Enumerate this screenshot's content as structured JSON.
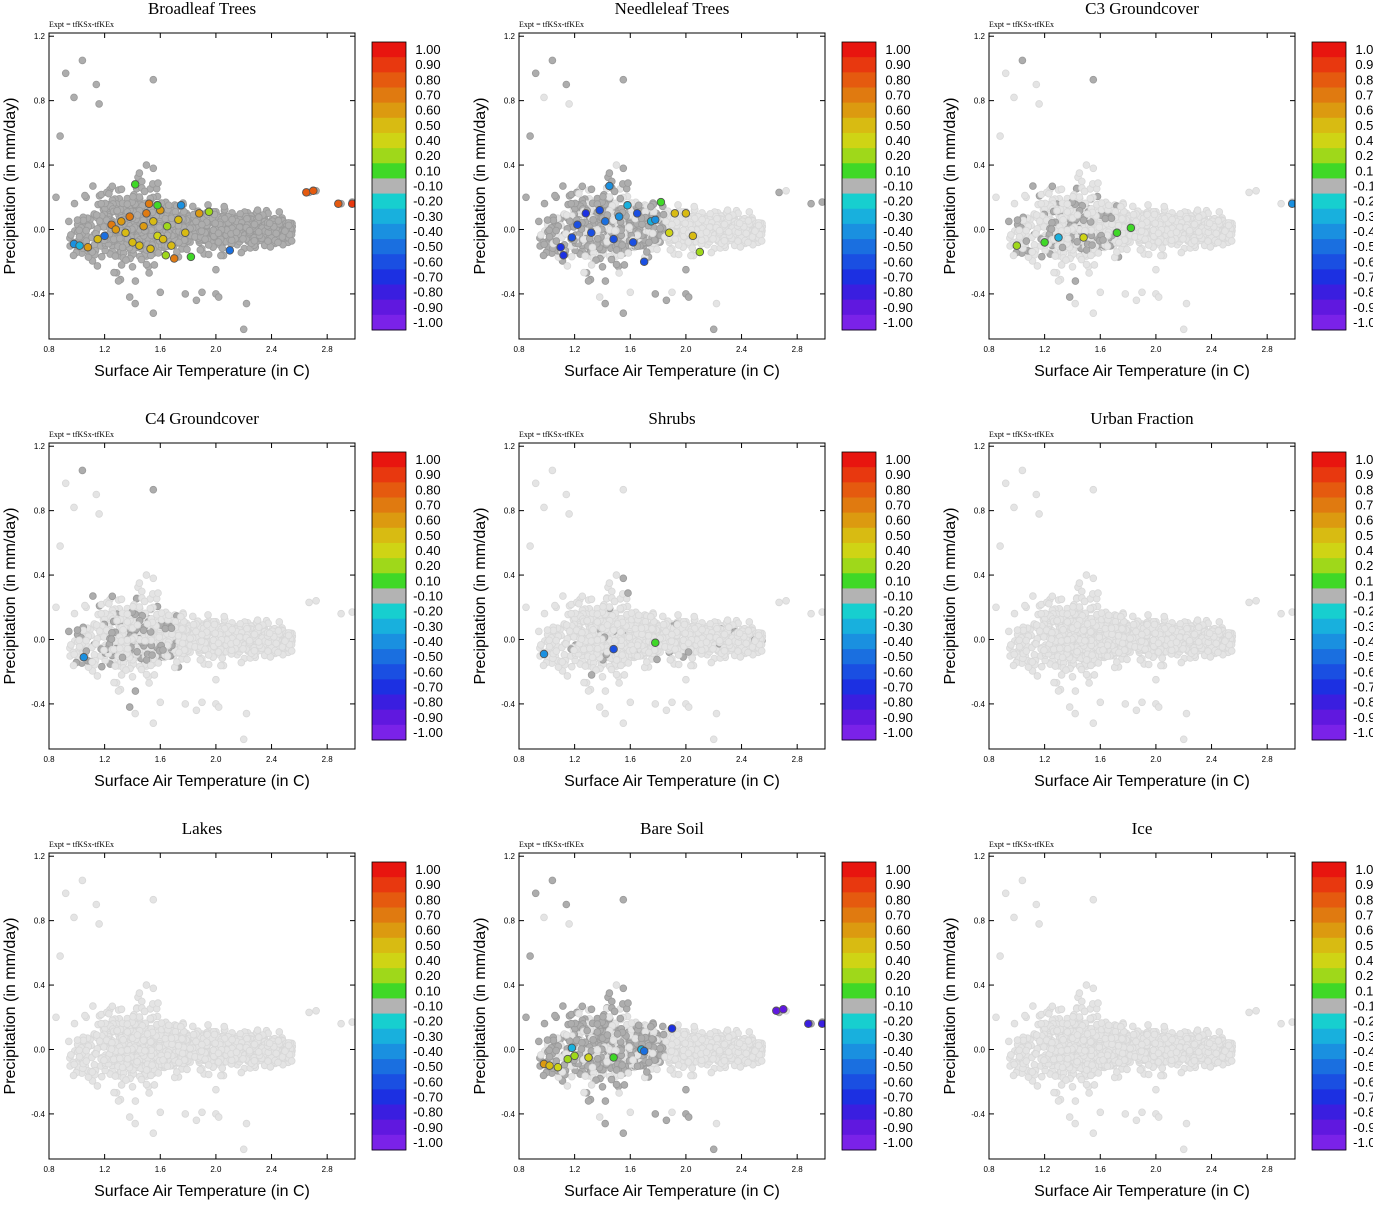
{
  "figure": {
    "experiment_label": "Expt = tfKSx-tfKEx"
  },
  "colorbar": {
    "labels": [
      "1.00",
      "0.90",
      "0.80",
      "0.70",
      "0.60",
      "0.50",
      "0.40",
      "0.20",
      "0.10",
      "-0.10",
      "-0.20",
      "-0.30",
      "-0.40",
      "-0.50",
      "-0.60",
      "-0.70",
      "-0.80",
      "-0.90",
      "-1.00"
    ],
    "colors": [
      "#e8150f",
      "#e8380f",
      "#e55a0f",
      "#e07a10",
      "#dc9a10",
      "#d8bb12",
      "#cfd415",
      "#9fd81a",
      "#3fd827",
      "#b3b3b3",
      "#17cfcf",
      "#18b0dd",
      "#1a90e0",
      "#1a6fe0",
      "#1a4fe2",
      "#1c30e2",
      "#3a1ee0",
      "#6018df",
      "#7a22e8"
    ]
  },
  "chart_data": [
    {
      "type": "scatter",
      "title": "Broadleaf Trees",
      "xlabel": "Surface Air Temperature (in C)",
      "ylabel": "Precipitation (in mm/day)",
      "xlim": [
        0.8,
        3.0
      ],
      "ylim": [
        -0.68,
        1.22
      ],
      "xticks": [
        "0.8",
        "1.2",
        "1.6",
        "2.0",
        "2.4",
        "2.8"
      ],
      "yticks": [
        "-0.4",
        "0.0",
        "0.4",
        "0.8",
        "1.2"
      ],
      "base_cloud": "dark-gray",
      "highlights": [
        {
          "x": 0.98,
          "y": -0.09,
          "value": -0.3
        },
        {
          "x": 1.02,
          "y": -0.1,
          "value": -0.2
        },
        {
          "x": 1.08,
          "y": -0.11,
          "value": 0.6
        },
        {
          "x": 1.15,
          "y": -0.06,
          "value": 0.5
        },
        {
          "x": 1.2,
          "y": -0.04,
          "value": -0.4
        },
        {
          "x": 1.25,
          "y": 0.03,
          "value": 0.7
        },
        {
          "x": 1.28,
          "y": 0.0,
          "value": 0.6
        },
        {
          "x": 1.32,
          "y": 0.05,
          "value": 0.6
        },
        {
          "x": 1.35,
          "y": -0.02,
          "value": 0.4
        },
        {
          "x": 1.38,
          "y": 0.08,
          "value": 0.7
        },
        {
          "x": 1.4,
          "y": -0.08,
          "value": 0.5
        },
        {
          "x": 1.45,
          "y": -0.1,
          "value": 0.4
        },
        {
          "x": 1.48,
          "y": 0.02,
          "value": 0.6
        },
        {
          "x": 1.5,
          "y": 0.1,
          "value": 0.7
        },
        {
          "x": 1.53,
          "y": -0.12,
          "value": 0.4
        },
        {
          "x": 1.55,
          "y": 0.05,
          "value": 0.5
        },
        {
          "x": 1.58,
          "y": -0.04,
          "value": 0.3
        },
        {
          "x": 1.6,
          "y": 0.12,
          "value": 0.6
        },
        {
          "x": 1.62,
          "y": -0.06,
          "value": 0.4
        },
        {
          "x": 1.65,
          "y": 0.02,
          "value": 0.2
        },
        {
          "x": 1.68,
          "y": -0.1,
          "value": 0.5
        },
        {
          "x": 1.7,
          "y": -0.18,
          "value": 0.7
        },
        {
          "x": 1.73,
          "y": 0.06,
          "value": 0.5
        },
        {
          "x": 1.75,
          "y": 0.15,
          "value": -0.3
        },
        {
          "x": 1.78,
          "y": -0.02,
          "value": 0.4
        },
        {
          "x": 1.82,
          "y": -0.17,
          "value": 0.1
        },
        {
          "x": 1.88,
          "y": 0.1,
          "value": 0.6
        },
        {
          "x": 1.95,
          "y": 0.11,
          "value": 0.2
        },
        {
          "x": 1.42,
          "y": 0.28,
          "value": 0.1
        },
        {
          "x": 1.52,
          "y": 0.16,
          "value": 0.7
        },
        {
          "x": 1.58,
          "y": 0.15,
          "value": 0.1
        },
        {
          "x": 1.64,
          "y": -0.16,
          "value": 0.2
        },
        {
          "x": 2.1,
          "y": -0.13,
          "value": -0.4
        },
        {
          "x": 2.65,
          "y": 0.23,
          "value": 0.8
        },
        {
          "x": 2.7,
          "y": 0.24,
          "value": 0.8
        },
        {
          "x": 2.88,
          "y": 0.16,
          "value": 0.8
        },
        {
          "x": 2.98,
          "y": 0.16,
          "value": 0.9
        }
      ]
    },
    {
      "type": "scatter",
      "title": "Needleleaf Trees",
      "xlabel": "Surface Air Temperature (in C)",
      "ylabel": "Precipitation (in mm/day)",
      "xlim": [
        0.8,
        3.0
      ],
      "ylim": [
        -0.68,
        1.22
      ],
      "xticks": [
        "0.8",
        "1.2",
        "1.6",
        "2.0",
        "2.4",
        "2.8"
      ],
      "yticks": [
        "-0.4",
        "0.0",
        "0.4",
        "0.8",
        "1.2"
      ],
      "base_cloud": "mixed",
      "highlights": [
        {
          "x": 1.1,
          "y": -0.11,
          "value": -0.7
        },
        {
          "x": 1.18,
          "y": -0.05,
          "value": -0.5
        },
        {
          "x": 1.22,
          "y": 0.03,
          "value": -0.6
        },
        {
          "x": 1.28,
          "y": 0.1,
          "value": -0.7
        },
        {
          "x": 1.32,
          "y": -0.02,
          "value": -0.6
        },
        {
          "x": 1.38,
          "y": 0.12,
          "value": -0.5
        },
        {
          "x": 1.42,
          "y": 0.05,
          "value": -0.4
        },
        {
          "x": 1.48,
          "y": -0.06,
          "value": -0.6
        },
        {
          "x": 1.52,
          "y": 0.08,
          "value": -0.3
        },
        {
          "x": 1.58,
          "y": 0.15,
          "value": -0.2
        },
        {
          "x": 1.62,
          "y": -0.08,
          "value": -0.5
        },
        {
          "x": 1.65,
          "y": 0.1,
          "value": -0.6
        },
        {
          "x": 1.7,
          "y": -0.2,
          "value": -0.6
        },
        {
          "x": 1.75,
          "y": 0.05,
          "value": -0.2
        },
        {
          "x": 1.78,
          "y": 0.06,
          "value": -0.3
        },
        {
          "x": 1.82,
          "y": 0.17,
          "value": 0.1
        },
        {
          "x": 1.88,
          "y": -0.02,
          "value": 0.3
        },
        {
          "x": 1.92,
          "y": 0.1,
          "value": 0.4
        },
        {
          "x": 2.0,
          "y": 0.1,
          "value": 0.5
        },
        {
          "x": 2.05,
          "y": -0.04,
          "value": 0.4
        },
        {
          "x": 2.1,
          "y": -0.14,
          "value": 0.2
        },
        {
          "x": 1.12,
          "y": -0.16,
          "value": -0.7
        },
        {
          "x": 1.45,
          "y": 0.27,
          "value": -0.3
        }
      ]
    },
    {
      "type": "scatter",
      "title": "C3 Groundcover",
      "xlabel": "Surface Air Temperature (in C)",
      "ylabel": "Precipitation (in mm/day)",
      "xlim": [
        0.8,
        3.0
      ],
      "ylim": [
        -0.68,
        1.22
      ],
      "xticks": [
        "0.8",
        "1.2",
        "1.6",
        "2.0",
        "2.4",
        "2.8"
      ],
      "yticks": [
        "-0.4",
        "0.0",
        "0.4",
        "0.8",
        "1.2"
      ],
      "base_cloud": "mixed-light",
      "highlights": [
        {
          "x": 1.0,
          "y": -0.1,
          "value": 0.2
        },
        {
          "x": 1.2,
          "y": -0.08,
          "value": 0.1
        },
        {
          "x": 1.3,
          "y": -0.05,
          "value": -0.2
        },
        {
          "x": 1.48,
          "y": -0.05,
          "value": 0.3
        },
        {
          "x": 1.72,
          "y": -0.02,
          "value": 0.1
        },
        {
          "x": 1.82,
          "y": 0.01,
          "value": 0.1
        },
        {
          "x": 2.98,
          "y": 0.16,
          "value": -0.3
        }
      ]
    },
    {
      "type": "scatter",
      "title": "C4 Groundcover",
      "xlabel": "Surface Air Temperature (in C)",
      "ylabel": "Precipitation (in mm/day)",
      "xlim": [
        0.8,
        3.0
      ],
      "ylim": [
        -0.68,
        1.22
      ],
      "xticks": [
        "0.8",
        "1.2",
        "1.6",
        "2.0",
        "2.4",
        "2.8"
      ],
      "yticks": [
        "-0.4",
        "0.0",
        "0.4",
        "0.8",
        "1.2"
      ],
      "base_cloud": "mixed-light",
      "highlights": [
        {
          "x": 1.05,
          "y": -0.11,
          "value": -0.3
        }
      ]
    },
    {
      "type": "scatter",
      "title": "Shrubs",
      "xlabel": "Surface Air Temperature (in C)",
      "ylabel": "Precipitation (in mm/day)",
      "xlim": [
        0.8,
        3.0
      ],
      "ylim": [
        -0.68,
        1.22
      ],
      "xticks": [
        "0.8",
        "1.2",
        "1.6",
        "2.0",
        "2.4",
        "2.8"
      ],
      "yticks": [
        "-0.4",
        "0.0",
        "0.4",
        "0.8",
        "1.2"
      ],
      "base_cloud": "light-sparse",
      "highlights": [
        {
          "x": 0.98,
          "y": -0.09,
          "value": -0.3
        },
        {
          "x": 1.48,
          "y": -0.06,
          "value": -0.5
        },
        {
          "x": 1.78,
          "y": -0.02,
          "value": 0.1
        }
      ]
    },
    {
      "type": "scatter",
      "title": "Urban Fraction",
      "xlabel": "Surface Air Temperature (in C)",
      "ylabel": "Precipitation (in mm/day)",
      "xlim": [
        0.8,
        3.0
      ],
      "ylim": [
        -0.68,
        1.22
      ],
      "xticks": [
        "0.8",
        "1.2",
        "1.6",
        "2.0",
        "2.4",
        "2.8"
      ],
      "yticks": [
        "-0.4",
        "0.0",
        "0.4",
        "0.8",
        "1.2"
      ],
      "base_cloud": "light",
      "highlights": []
    },
    {
      "type": "scatter",
      "title": "Lakes",
      "xlabel": "Surface Air Temperature (in C)",
      "ylabel": "Precipitation (in mm/day)",
      "xlim": [
        0.8,
        3.0
      ],
      "ylim": [
        -0.68,
        1.22
      ],
      "xticks": [
        "0.8",
        "1.2",
        "1.6",
        "2.0",
        "2.4",
        "2.8"
      ],
      "yticks": [
        "-0.4",
        "0.0",
        "0.4",
        "0.8",
        "1.2"
      ],
      "base_cloud": "light",
      "highlights": []
    },
    {
      "type": "scatter",
      "title": "Bare Soil",
      "xlabel": "Surface Air Temperature (in C)",
      "ylabel": "Precipitation (in mm/day)",
      "xlim": [
        0.8,
        3.0
      ],
      "ylim": [
        -0.68,
        1.22
      ],
      "xticks": [
        "0.8",
        "1.2",
        "1.6",
        "2.0",
        "2.4",
        "2.8"
      ],
      "yticks": [
        "-0.4",
        "0.0",
        "0.4",
        "0.8",
        "1.2"
      ],
      "base_cloud": "mixed",
      "highlights": [
        {
          "x": 0.98,
          "y": -0.09,
          "value": 0.6
        },
        {
          "x": 1.02,
          "y": -0.1,
          "value": 0.5
        },
        {
          "x": 1.08,
          "y": -0.11,
          "value": 0.3
        },
        {
          "x": 1.15,
          "y": -0.06,
          "value": 0.2
        },
        {
          "x": 1.2,
          "y": -0.04,
          "value": 0.2
        },
        {
          "x": 1.18,
          "y": 0.01,
          "value": -0.2
        },
        {
          "x": 1.3,
          "y": -0.05,
          "value": 0.3
        },
        {
          "x": 1.48,
          "y": -0.05,
          "value": 0.1
        },
        {
          "x": 1.68,
          "y": 0.0,
          "value": -0.2
        },
        {
          "x": 1.7,
          "y": -0.01,
          "value": -0.4
        },
        {
          "x": 1.9,
          "y": 0.13,
          "value": -0.7
        },
        {
          "x": 2.65,
          "y": 0.24,
          "value": -0.9
        },
        {
          "x": 2.7,
          "y": 0.25,
          "value": -0.9
        },
        {
          "x": 2.88,
          "y": 0.16,
          "value": -0.8
        },
        {
          "x": 2.98,
          "y": 0.16,
          "value": -0.8
        }
      ]
    },
    {
      "type": "scatter",
      "title": "Ice",
      "xlabel": "Surface Air Temperature (in C)",
      "ylabel": "Precipitation (in mm/day)",
      "xlim": [
        0.8,
        3.0
      ],
      "ylim": [
        -0.68,
        1.22
      ],
      "xticks": [
        "0.8",
        "1.2",
        "1.6",
        "2.0",
        "2.4",
        "2.8"
      ],
      "yticks": [
        "-0.4",
        "0.0",
        "0.4",
        "0.8",
        "1.2"
      ],
      "base_cloud": "light",
      "highlights": []
    }
  ]
}
